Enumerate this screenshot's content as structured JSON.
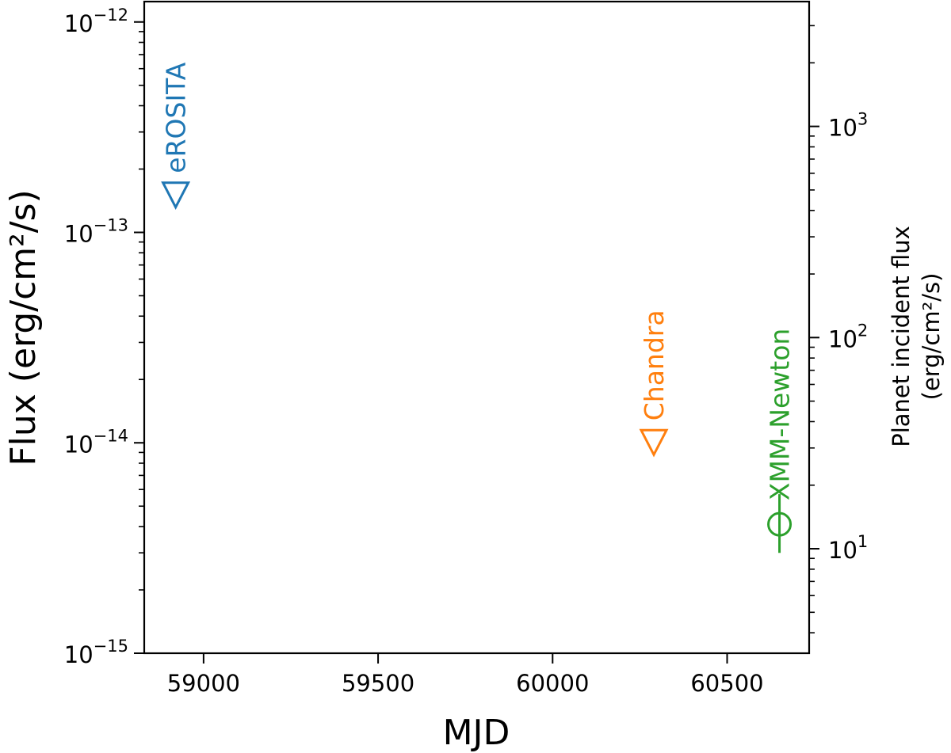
{
  "chart_data": {
    "type": "scatter",
    "xlabel": "MJD",
    "ylabel": "Flux (erg/cm²/s)",
    "ylabel_right_line1": "Planet incident flux",
    "ylabel_right_line2": "(erg/cm²/s)",
    "xlim": [
      58830,
      60735
    ],
    "ylim": [
      1e-15,
      1.25e-12
    ],
    "yscale": "log",
    "right_ylim": [
      3.2,
      3900
    ],
    "right_yscale": "log",
    "grid": false,
    "x_ticks": [
      59000,
      59500,
      60000,
      60500
    ],
    "x_tick_labels": [
      "59000",
      "59500",
      "60000",
      "60500"
    ],
    "y_ticks": [
      1e-15,
      1e-14,
      1e-13,
      1e-12
    ],
    "y_tick_labels": [
      {
        "base": "10",
        "exp": "−15"
      },
      {
        "base": "10",
        "exp": "−14"
      },
      {
        "base": "10",
        "exp": "−13"
      },
      {
        "base": "10",
        "exp": "−12"
      }
    ],
    "right_y_ticks": [
      10,
      100,
      1000
    ],
    "right_y_tick_labels": [
      {
        "base": "10",
        "exp": "1"
      },
      {
        "base": "10",
        "exp": "2"
      },
      {
        "base": "10",
        "exp": "3"
      }
    ],
    "series": [
      {
        "name": "eROSITA",
        "color": "#1f77b4",
        "marker": "triangle-down-open",
        "limit": "upper",
        "points": [
          {
            "x": 58920,
            "y": 1.5e-13
          }
        ]
      },
      {
        "name": "Chandra",
        "color": "#ff7f0e",
        "marker": "triangle-down-open",
        "limit": "upper",
        "points": [
          {
            "x": 60290,
            "y": 1e-14
          }
        ]
      },
      {
        "name": "XMM-Newton",
        "color": "#2ca02c",
        "marker": "circle-open-errorbar",
        "limit": "none",
        "points": [
          {
            "x": 60650,
            "y": 4.1e-15,
            "y_err_low": 3e-15,
            "y_err_high": 5.7e-15
          }
        ]
      }
    ]
  }
}
